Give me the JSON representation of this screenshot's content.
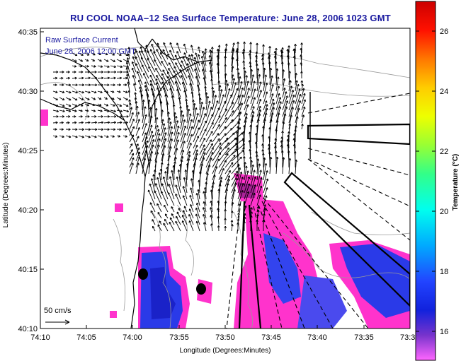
{
  "title": "RU COOL   NOAA–12  Sea Surface Temperature:  June 28, 2006 1023 GMT",
  "overlay_note": {
    "line1": "Raw Surface Current",
    "line2": "June 28, 2006 12:00 GMT"
  },
  "scale_label": "50 cm/s",
  "x_axis": {
    "label": "Longitude (Degrees:Minutes)",
    "ticks": [
      "74:10",
      "74:05",
      "74:00",
      "73:55",
      "73:50",
      "73:45",
      "73:40",
      "73:35",
      "73:3"
    ]
  },
  "y_axis": {
    "label": "Latitude (Degrees:Minutes)",
    "ticks": [
      "40:35",
      "40:30",
      "40:25",
      "40:20",
      "40:15",
      "40:10"
    ]
  },
  "colorbar": {
    "label": "Temperature (°C)",
    "ticks": [
      "26",
      "24",
      "22",
      "20",
      "18",
      "16"
    ],
    "range": [
      15,
      27
    ]
  },
  "colors": {
    "title": "#1a1aa0",
    "land": "#ffffff",
    "sst_warm": "#ff33cc",
    "sst_cold": "#2233ee"
  }
}
